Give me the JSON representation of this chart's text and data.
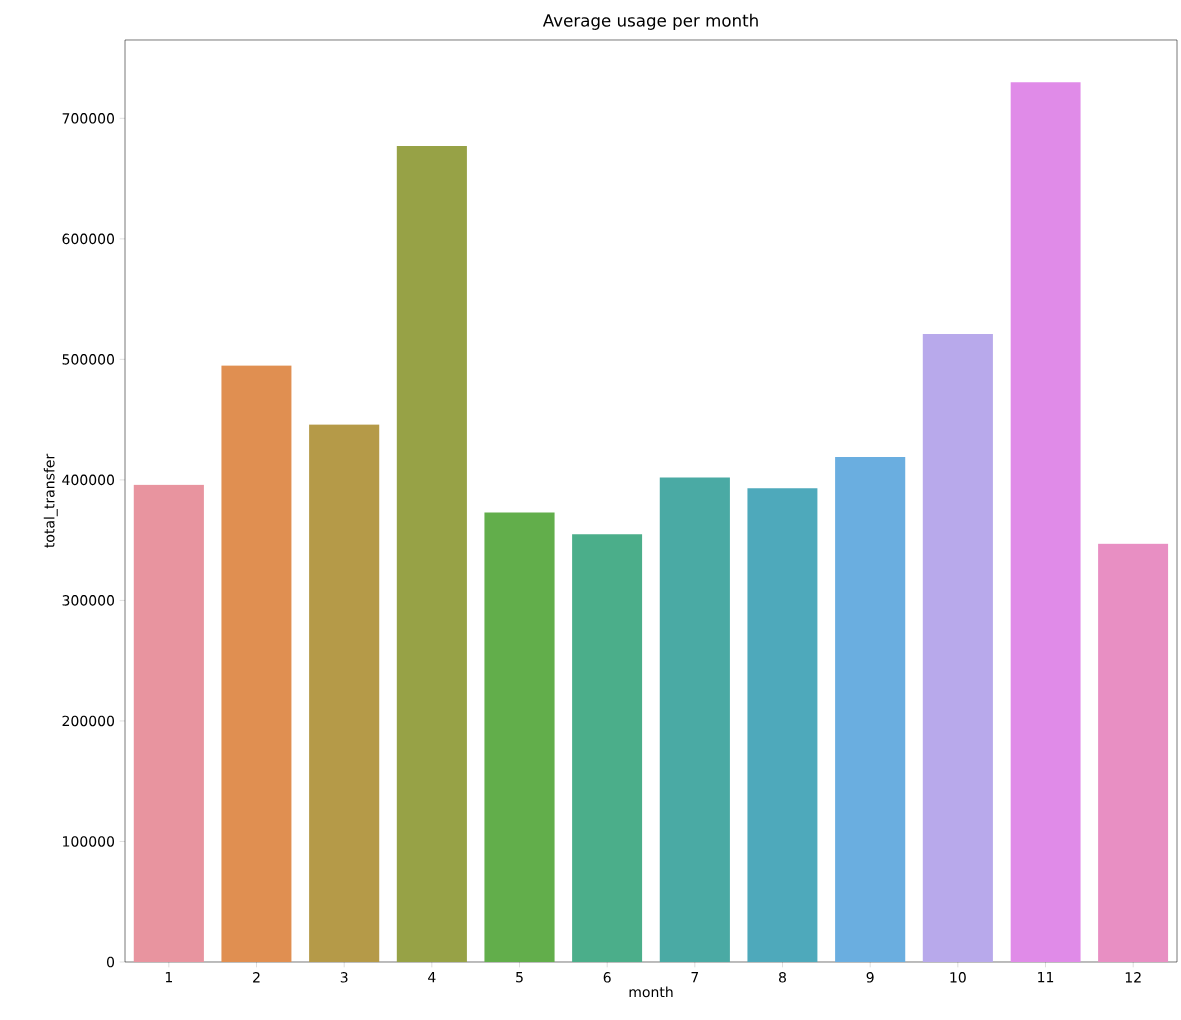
{
  "chart_data": {
    "type": "bar",
    "title": "Average usage per month",
    "xlabel": "month",
    "ylabel": "total_transfer",
    "categories": [
      "1",
      "2",
      "3",
      "4",
      "5",
      "6",
      "7",
      "8",
      "9",
      "10",
      "11",
      "12"
    ],
    "values": [
      396000,
      495000,
      446000,
      677000,
      373000,
      355000,
      402000,
      393000,
      419000,
      521000,
      730000,
      347000
    ],
    "colors": [
      "#e8949f",
      "#e08f51",
      "#b59a48",
      "#97a246",
      "#62ae4b",
      "#4bae8a",
      "#4aaaa4",
      "#4ea9bb",
      "#6aaee0",
      "#b8a9eb",
      "#e08be8",
      "#e88fc3"
    ],
    "ylim": [
      0,
      765000
    ],
    "yticks": [
      0,
      100000,
      200000,
      300000,
      400000,
      500000,
      600000,
      700000
    ],
    "grid": false
  }
}
